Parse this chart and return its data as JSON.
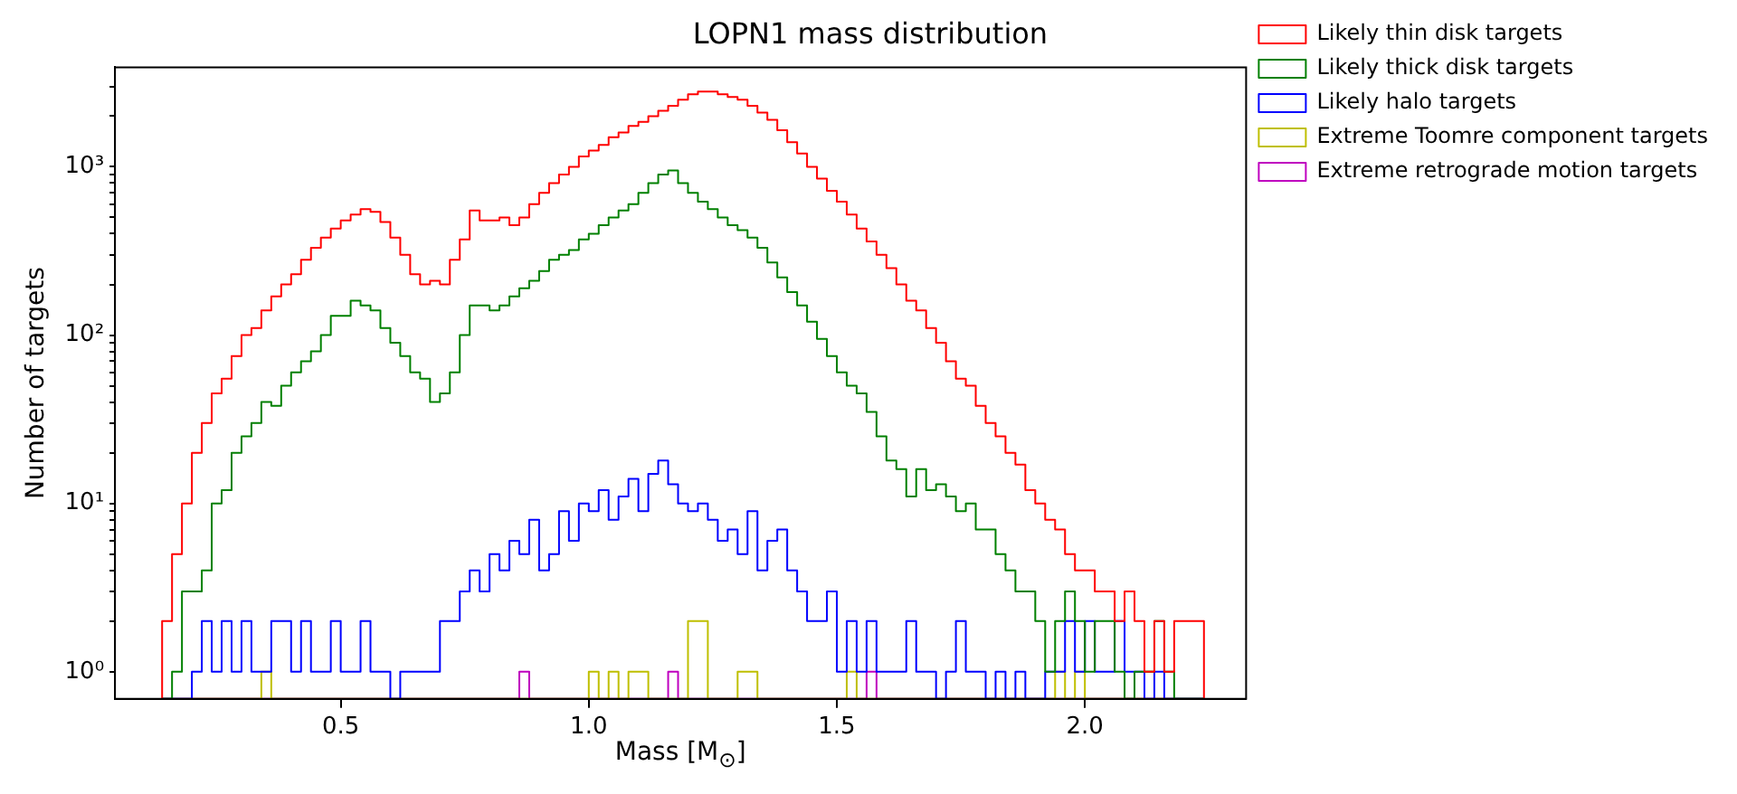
{
  "chart_data": {
    "type": "histogram",
    "title": "LOPN1 mass distribution",
    "xlabel": "Mass [M$_{⊙}$]",
    "ylabel": "Number of targets",
    "bins": [
      0.14,
      0.16,
      0.18,
      0.2,
      0.22,
      0.24,
      0.26,
      0.28,
      0.3,
      0.32,
      0.34,
      0.36,
      0.38,
      0.4,
      0.42,
      0.44,
      0.46,
      0.48,
      0.5,
      0.52,
      0.54,
      0.56,
      0.58,
      0.6,
      0.62,
      0.64,
      0.66,
      0.68,
      0.7,
      0.72,
      0.74,
      0.76,
      0.78,
      0.8,
      0.82,
      0.84,
      0.86,
      0.88,
      0.9,
      0.92,
      0.94,
      0.96,
      0.98,
      1.0,
      1.02,
      1.04,
      1.06,
      1.08,
      1.1,
      1.12,
      1.14,
      1.16,
      1.18,
      1.2,
      1.22,
      1.24,
      1.26,
      1.28,
      1.3,
      1.32,
      1.34,
      1.36,
      1.38,
      1.4,
      1.42,
      1.44,
      1.46,
      1.48,
      1.5,
      1.52,
      1.54,
      1.56,
      1.58,
      1.6,
      1.62,
      1.64,
      1.66,
      1.68,
      1.7,
      1.72,
      1.74,
      1.76,
      1.78,
      1.8,
      1.82,
      1.84,
      1.86,
      1.88,
      1.9,
      1.92,
      1.94,
      1.96,
      1.98,
      2.0,
      2.02,
      2.04,
      2.06,
      2.08,
      2.1,
      2.12,
      2.14,
      2.16,
      2.18,
      2.2,
      2.22,
      2.24
    ],
    "series": [
      {
        "name": "Likely thin disk targets",
        "color": "#ff0000",
        "values": [
          2,
          5,
          10,
          20,
          30,
          45,
          55,
          75,
          100,
          110,
          140,
          170,
          200,
          230,
          280,
          330,
          380,
          430,
          480,
          520,
          560,
          540,
          470,
          380,
          300,
          230,
          200,
          210,
          200,
          280,
          370,
          550,
          480,
          480,
          500,
          450,
          500,
          600,
          700,
          800,
          900,
          1000,
          1150,
          1250,
          1350,
          1500,
          1600,
          1750,
          1850,
          2000,
          2150,
          2300,
          2500,
          2700,
          2800,
          2800,
          2700,
          2600,
          2500,
          2300,
          2100,
          1900,
          1650,
          1400,
          1200,
          1000,
          850,
          720,
          620,
          520,
          430,
          360,
          300,
          250,
          200,
          160,
          140,
          110,
          90,
          70,
          55,
          50,
          38,
          30,
          25,
          20,
          17,
          12,
          10,
          8,
          7,
          5,
          4,
          4,
          3,
          3,
          2,
          3,
          2,
          1,
          2,
          1,
          2,
          2,
          2
        ]
      },
      {
        "name": "Likely thick disk targets",
        "color": "#008000",
        "values": [
          null,
          1,
          3,
          3,
          4,
          10,
          12,
          20,
          25,
          30,
          40,
          38,
          50,
          60,
          70,
          80,
          100,
          130,
          130,
          160,
          150,
          140,
          110,
          90,
          75,
          60,
          55,
          40,
          45,
          60,
          100,
          150,
          150,
          140,
          150,
          170,
          190,
          210,
          240,
          280,
          300,
          320,
          370,
          400,
          450,
          500,
          550,
          600,
          700,
          800,
          900,
          950,
          800,
          700,
          620,
          560,
          500,
          450,
          420,
          380,
          330,
          270,
          220,
          180,
          150,
          120,
          95,
          75,
          60,
          50,
          45,
          35,
          25,
          18,
          16,
          11,
          16,
          12,
          13,
          11,
          9,
          10,
          7,
          7,
          5,
          4,
          3,
          3,
          2,
          1,
          2,
          3,
          2,
          1,
          2,
          2,
          1,
          null,
          1,
          1,
          2,
          1,
          null,
          null,
          null
        ]
      },
      {
        "name": "Likely halo targets",
        "color": "#0000ff",
        "values": [
          null,
          null,
          null,
          1,
          2,
          1,
          2,
          1,
          2,
          1,
          1,
          2,
          2,
          1,
          2,
          1,
          1,
          2,
          1,
          1,
          2,
          1,
          1,
          null,
          1,
          1,
          1,
          1,
          2,
          2,
          3,
          4,
          3,
          5,
          4,
          6,
          5,
          8,
          4,
          5,
          9,
          6,
          10,
          9,
          12,
          8,
          11,
          14,
          9,
          15,
          18,
          13,
          10,
          9,
          10,
          8,
          6,
          7,
          5,
          9,
          4,
          6,
          7,
          4,
          3,
          2,
          2,
          3,
          1,
          2,
          1,
          2,
          1,
          1,
          1,
          2,
          1,
          1,
          null,
          1,
          2,
          1,
          1,
          null,
          1,
          null,
          1,
          null,
          null,
          1,
          1,
          2,
          1,
          2,
          1,
          1,
          2,
          1,
          1,
          null,
          1,
          null,
          null,
          null,
          null
        ]
      },
      {
        "name": "Extreme Toomre component targets",
        "color": "#bfbf00",
        "values": [
          null,
          null,
          null,
          null,
          null,
          null,
          null,
          null,
          null,
          null,
          1,
          null,
          null,
          null,
          null,
          null,
          null,
          null,
          null,
          null,
          null,
          null,
          null,
          null,
          null,
          null,
          null,
          null,
          null,
          null,
          null,
          null,
          null,
          null,
          null,
          null,
          null,
          null,
          null,
          null,
          null,
          null,
          null,
          1,
          null,
          1,
          null,
          1,
          1,
          null,
          null,
          null,
          null,
          2,
          2,
          null,
          null,
          null,
          1,
          1,
          null,
          null,
          null,
          null,
          null,
          null,
          null,
          null,
          null,
          1,
          null,
          null,
          null,
          null,
          null,
          null,
          null,
          null,
          null,
          null,
          null,
          null,
          null,
          null,
          null,
          null,
          null,
          null,
          null,
          null,
          1,
          null,
          1,
          null,
          null,
          null,
          null,
          null,
          null,
          1,
          null,
          null,
          null,
          null,
          null
        ]
      },
      {
        "name": "Extreme retrograde motion targets",
        "color": "#bf00bf",
        "values": [
          null,
          null,
          null,
          null,
          null,
          null,
          null,
          null,
          null,
          null,
          null,
          null,
          null,
          null,
          null,
          null,
          null,
          null,
          null,
          null,
          null,
          null,
          null,
          null,
          null,
          null,
          null,
          null,
          null,
          null,
          null,
          null,
          null,
          null,
          null,
          null,
          1,
          null,
          null,
          null,
          null,
          null,
          null,
          null,
          null,
          null,
          null,
          null,
          null,
          null,
          null,
          1,
          null,
          null,
          null,
          null,
          null,
          null,
          null,
          null,
          null,
          null,
          null,
          null,
          null,
          null,
          null,
          null,
          null,
          null,
          null,
          1,
          null,
          null,
          null,
          null,
          null,
          null,
          null,
          null,
          null,
          null,
          null,
          null,
          null,
          null,
          null,
          null,
          null,
          null,
          null,
          null,
          null,
          null,
          null,
          null,
          null,
          null,
          null,
          null,
          null,
          null,
          null,
          null,
          null
        ]
      }
    ],
    "log": "y",
    "xlim": [
      0.045,
      2.325
    ],
    "ylim": [
      0.69,
      3900
    ],
    "xticks": [
      0.5,
      {
        "value": 1,
        "label": "1.0"
      },
      1.5,
      {
        "value": 2,
        "label": "2.0"
      }
    ],
    "yticks": [
      {
        "value": 1,
        "label": "10⁰"
      },
      {
        "value": 2,
        "label": null
      },
      {
        "value": 3,
        "label": null
      },
      {
        "value": 4,
        "label": null
      },
      {
        "value": 5,
        "label": null
      },
      {
        "value": 6,
        "label": null
      },
      {
        "value": 7,
        "label": null
      },
      {
        "value": 8,
        "label": null
      },
      {
        "value": 9,
        "label": null
      },
      {
        "value": 10,
        "label": "10¹"
      },
      {
        "value": 20,
        "label": null
      },
      {
        "value": 30,
        "label": null
      },
      {
        "value": 40,
        "label": null
      },
      {
        "value": 50,
        "label": null
      },
      {
        "value": 60,
        "label": null
      },
      {
        "value": 70,
        "label": null
      },
      {
        "value": 80,
        "label": null
      },
      {
        "value": 90,
        "label": null
      },
      {
        "value": 100,
        "label": "10²"
      },
      {
        "value": 200,
        "label": null
      },
      {
        "value": 300,
        "label": null
      },
      {
        "value": 400,
        "label": null
      },
      {
        "value": 500,
        "label": null
      },
      {
        "value": 600,
        "label": null
      },
      {
        "value": 700,
        "label": null
      },
      {
        "value": 800,
        "label": null
      },
      {
        "value": 900,
        "label": null
      },
      {
        "value": 1000,
        "label": "10³"
      },
      {
        "value": 2000,
        "label": null
      },
      {
        "value": 3000,
        "label": null
      }
    ],
    "grid": false,
    "legend": "right",
    "line_style": "solid"
  }
}
